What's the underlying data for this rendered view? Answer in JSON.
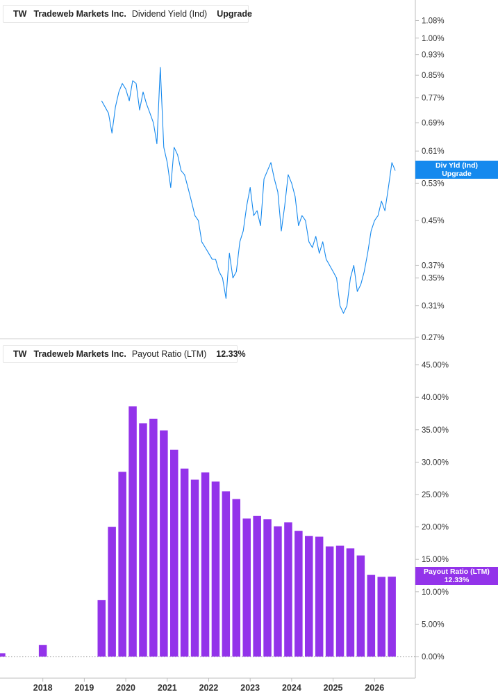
{
  "colors": {
    "yield": "#1589ee",
    "payout": "#9333ea",
    "axis": "#bdbdbd"
  },
  "top_panel": {
    "ticker": "TW",
    "company": "Tradeweb Markets Inc.",
    "metric": "Dividend Yield (Ind)",
    "value": "Upgrade",
    "tag_line1": "Div Yld (Ind)",
    "tag_line2": "Upgrade"
  },
  "bottom_panel": {
    "ticker": "TW",
    "company": "Tradeweb Markets Inc.",
    "metric": "Payout Ratio (LTM)",
    "value": "12.33%",
    "tag_line1": "Payout Ratio (LTM)",
    "tag_line2": "12.33%"
  },
  "chart_data": [
    {
      "type": "line",
      "name": "Dividend Yield (Ind)",
      "scale": "log",
      "y_tick_labels": [
        "1.08%",
        "1.00%",
        "0.93%",
        "0.85%",
        "0.77%",
        "0.69%",
        "0.61%",
        "0.53%",
        "0.45%",
        "0.37%",
        "0.35%",
        "0.31%",
        "0.27%"
      ],
      "y_ticks": [
        1.08,
        1.0,
        0.93,
        0.85,
        0.77,
        0.69,
        0.61,
        0.53,
        0.45,
        0.37,
        0.35,
        0.31,
        0.27
      ],
      "ylim": [
        0.27,
        1.16
      ],
      "x": [
        "2019-06",
        "2019-07",
        "2019-08",
        "2019-09",
        "2019-10",
        "2019-11",
        "2019-12",
        "2020-01",
        "2020-02",
        "2020-03",
        "2020-04",
        "2020-05",
        "2020-06",
        "2020-07",
        "2020-08",
        "2020-09",
        "2020-10",
        "2020-11",
        "2020-12",
        "2021-01",
        "2021-02",
        "2021-03",
        "2021-04",
        "2021-05",
        "2021-06",
        "2021-07",
        "2021-08",
        "2021-09",
        "2021-10",
        "2021-11",
        "2021-12",
        "2022-01",
        "2022-02",
        "2022-03",
        "2022-04",
        "2022-05",
        "2022-06",
        "2022-07",
        "2022-08",
        "2022-09",
        "2022-10",
        "2022-11",
        "2022-12",
        "2023-01",
        "2023-02",
        "2023-03",
        "2023-04",
        "2023-05",
        "2023-06",
        "2023-07",
        "2023-08",
        "2023-09",
        "2023-10",
        "2023-11",
        "2023-12",
        "2024-01",
        "2024-02",
        "2024-03",
        "2024-04",
        "2024-05",
        "2024-06",
        "2024-07",
        "2024-08",
        "2024-09",
        "2024-10",
        "2024-11",
        "2024-12",
        "2025-01",
        "2025-02",
        "2025-03",
        "2025-04",
        "2025-05",
        "2025-06",
        "2025-07",
        "2025-08",
        "2025-09",
        "2025-10",
        "2025-11",
        "2025-12",
        "2026-01",
        "2026-02",
        "2026-03",
        "2026-04",
        "2026-05",
        "2026-06",
        "2026-07"
      ],
      "values": [
        0.76,
        0.74,
        0.72,
        0.66,
        0.74,
        0.79,
        0.82,
        0.8,
        0.76,
        0.83,
        0.82,
        0.73,
        0.79,
        0.75,
        0.72,
        0.69,
        0.63,
        0.88,
        0.62,
        0.58,
        0.52,
        0.62,
        0.6,
        0.56,
        0.55,
        0.52,
        0.49,
        0.46,
        0.45,
        0.41,
        0.4,
        0.39,
        0.38,
        0.38,
        0.36,
        0.35,
        0.32,
        0.39,
        0.35,
        0.36,
        0.41,
        0.43,
        0.48,
        0.52,
        0.46,
        0.47,
        0.44,
        0.54,
        0.56,
        0.58,
        0.54,
        0.51,
        0.43,
        0.48,
        0.55,
        0.53,
        0.5,
        0.44,
        0.46,
        0.45,
        0.41,
        0.4,
        0.42,
        0.39,
        0.41,
        0.38,
        0.37,
        0.36,
        0.35,
        0.31,
        0.3,
        0.31,
        0.35,
        0.37,
        0.33,
        0.34,
        0.36,
        0.39,
        0.43,
        0.45,
        0.46,
        0.49,
        0.47,
        0.52,
        0.58,
        0.56
      ]
    },
    {
      "type": "bar",
      "name": "Payout Ratio (LTM)",
      "y_tick_labels": [
        "0.00%",
        "5.00%",
        "10.00%",
        "15.00%",
        "20.00%",
        "25.00%",
        "30.00%",
        "35.00%",
        "40.00%",
        "45.00%"
      ],
      "y_ticks": [
        0,
        5,
        10,
        15,
        20,
        25,
        30,
        35,
        40,
        45
      ],
      "ylim": [
        0,
        47
      ],
      "x_tick_labels": [
        "2018",
        "2019",
        "2020",
        "2021",
        "2022",
        "2023",
        "2024",
        "2025",
        "2026"
      ],
      "x_ticks": [
        "2018-01",
        "2019-01",
        "2020-01",
        "2021-01",
        "2022-01",
        "2023-01",
        "2024-01",
        "2025-01",
        "2026-01"
      ],
      "xlim": [
        "2017-01",
        "2026-12"
      ],
      "categories": [
        "2017-01",
        "2018-01",
        "2019-06",
        "2019-09",
        "2019-12",
        "2020-03",
        "2020-06",
        "2020-09",
        "2020-12",
        "2021-03",
        "2021-06",
        "2021-09",
        "2021-12",
        "2022-03",
        "2022-06",
        "2022-09",
        "2022-12",
        "2023-03",
        "2023-06",
        "2023-09",
        "2023-12",
        "2024-03",
        "2024-06",
        "2024-09",
        "2024-12",
        "2025-03",
        "2025-06",
        "2025-09",
        "2025-12",
        "2026-03",
        "2026-06"
      ],
      "values": [
        0.5,
        1.8,
        8.7,
        20.0,
        28.5,
        38.6,
        36.0,
        36.7,
        34.9,
        31.9,
        29.0,
        27.3,
        28.4,
        27.0,
        25.5,
        24.3,
        21.3,
        21.7,
        21.2,
        20.1,
        20.7,
        19.4,
        18.6,
        18.5,
        17.0,
        17.1,
        16.7,
        15.6,
        12.6,
        12.3,
        12.33
      ]
    }
  ]
}
